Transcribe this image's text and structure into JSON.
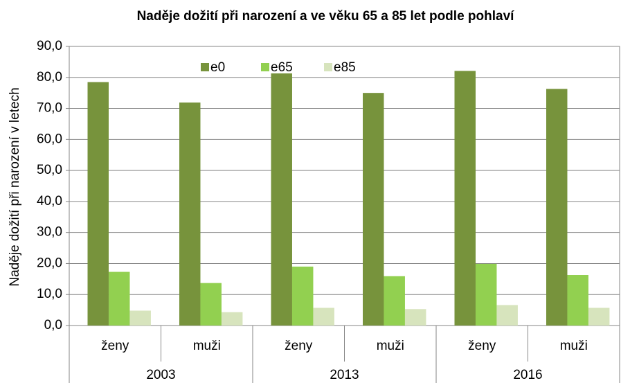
{
  "chart_data": {
    "type": "bar",
    "title": "Naděje dožití při narození a ve věku 65 a 85 let podle pohlaví",
    "y_label": "Naděje dožití při narození v letech",
    "categories": [
      "ženy",
      "muži",
      "ženy",
      "muži",
      "ženy",
      "muži"
    ],
    "groups": [
      "2003",
      "2013",
      "2016"
    ],
    "series": [
      {
        "name": "e0",
        "color": "#77933c",
        "values": [
          78.5,
          71.9,
          81.3,
          75.0,
          82.1,
          76.3
        ]
      },
      {
        "name": "e65",
        "color": "#92d050",
        "values": [
          17.3,
          13.7,
          19.0,
          15.9,
          19.9,
          16.3
        ]
      },
      {
        "name": "e85",
        "color": "#d7e4bd",
        "values": [
          4.8,
          4.3,
          5.7,
          5.3,
          6.6,
          5.7
        ]
      }
    ],
    "ylim": [
      0,
      90
    ],
    "yticks": [
      {
        "value": 0,
        "label": "0,0"
      },
      {
        "value": 10,
        "label": "10,0"
      },
      {
        "value": 20,
        "label": "20,0"
      },
      {
        "value": 30,
        "label": "30,0"
      },
      {
        "value": 40,
        "label": "40,0"
      },
      {
        "value": 50,
        "label": "50,0"
      },
      {
        "value": 60,
        "label": "60,0"
      },
      {
        "value": 70,
        "label": "70,0"
      },
      {
        "value": 80,
        "label": "80,0"
      },
      {
        "value": 90,
        "label": "90,0"
      }
    ],
    "grid": true,
    "legend": "top"
  }
}
